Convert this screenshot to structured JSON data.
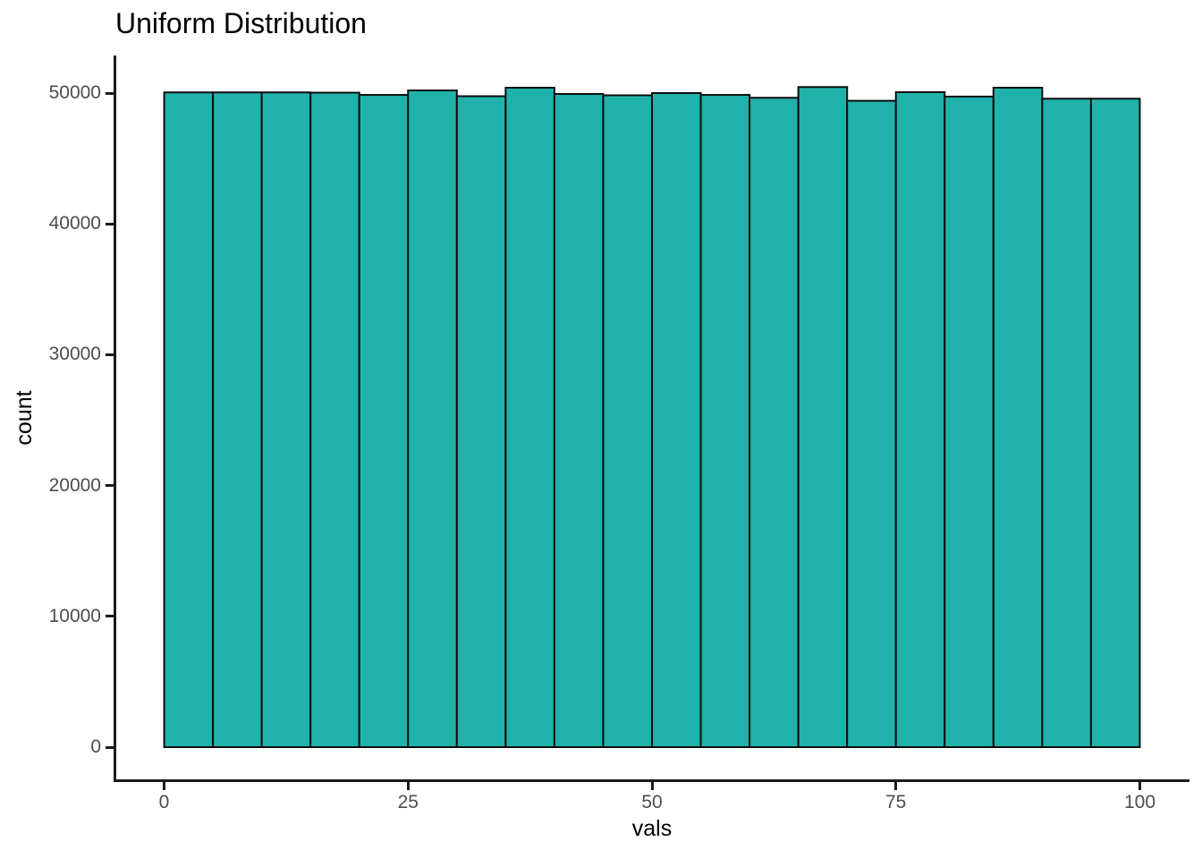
{
  "title": "Uniform Distribution",
  "chart_data": {
    "type": "bar",
    "subtype": "histogram",
    "title": "Uniform Distribution",
    "xlabel": "vals",
    "ylabel": "count",
    "bin_width": 5,
    "bin_edges": [
      0,
      5,
      10,
      15,
      20,
      25,
      30,
      35,
      40,
      45,
      50,
      55,
      60,
      65,
      70,
      75,
      80,
      85,
      90,
      95,
      100
    ],
    "counts": [
      50050,
      50050,
      50050,
      50030,
      49860,
      50200,
      49760,
      50410,
      49930,
      49830,
      50000,
      49860,
      49640,
      50460,
      49410,
      50070,
      49730,
      50410,
      49570,
      49570
    ],
    "x_ticks": [
      0,
      25,
      50,
      75,
      100
    ],
    "x_tick_labels": [
      "0",
      "25",
      "50",
      "75",
      "100"
    ],
    "y_ticks": [
      0,
      10000,
      20000,
      30000,
      40000,
      50000
    ],
    "y_tick_labels": [
      "0",
      "10000",
      "20000",
      "30000",
      "40000",
      "50000"
    ],
    "xlim": [
      -5,
      105
    ],
    "ylim": [
      0,
      52900
    ],
    "grid": false,
    "legend": "none",
    "bar_fill": "#20B2AA",
    "bar_stroke": "#0d0d0d",
    "axis_color": "#1a1a1a",
    "tick_label_color": "#4d4d4d",
    "title_color": "#000000",
    "background": "#ffffff"
  }
}
